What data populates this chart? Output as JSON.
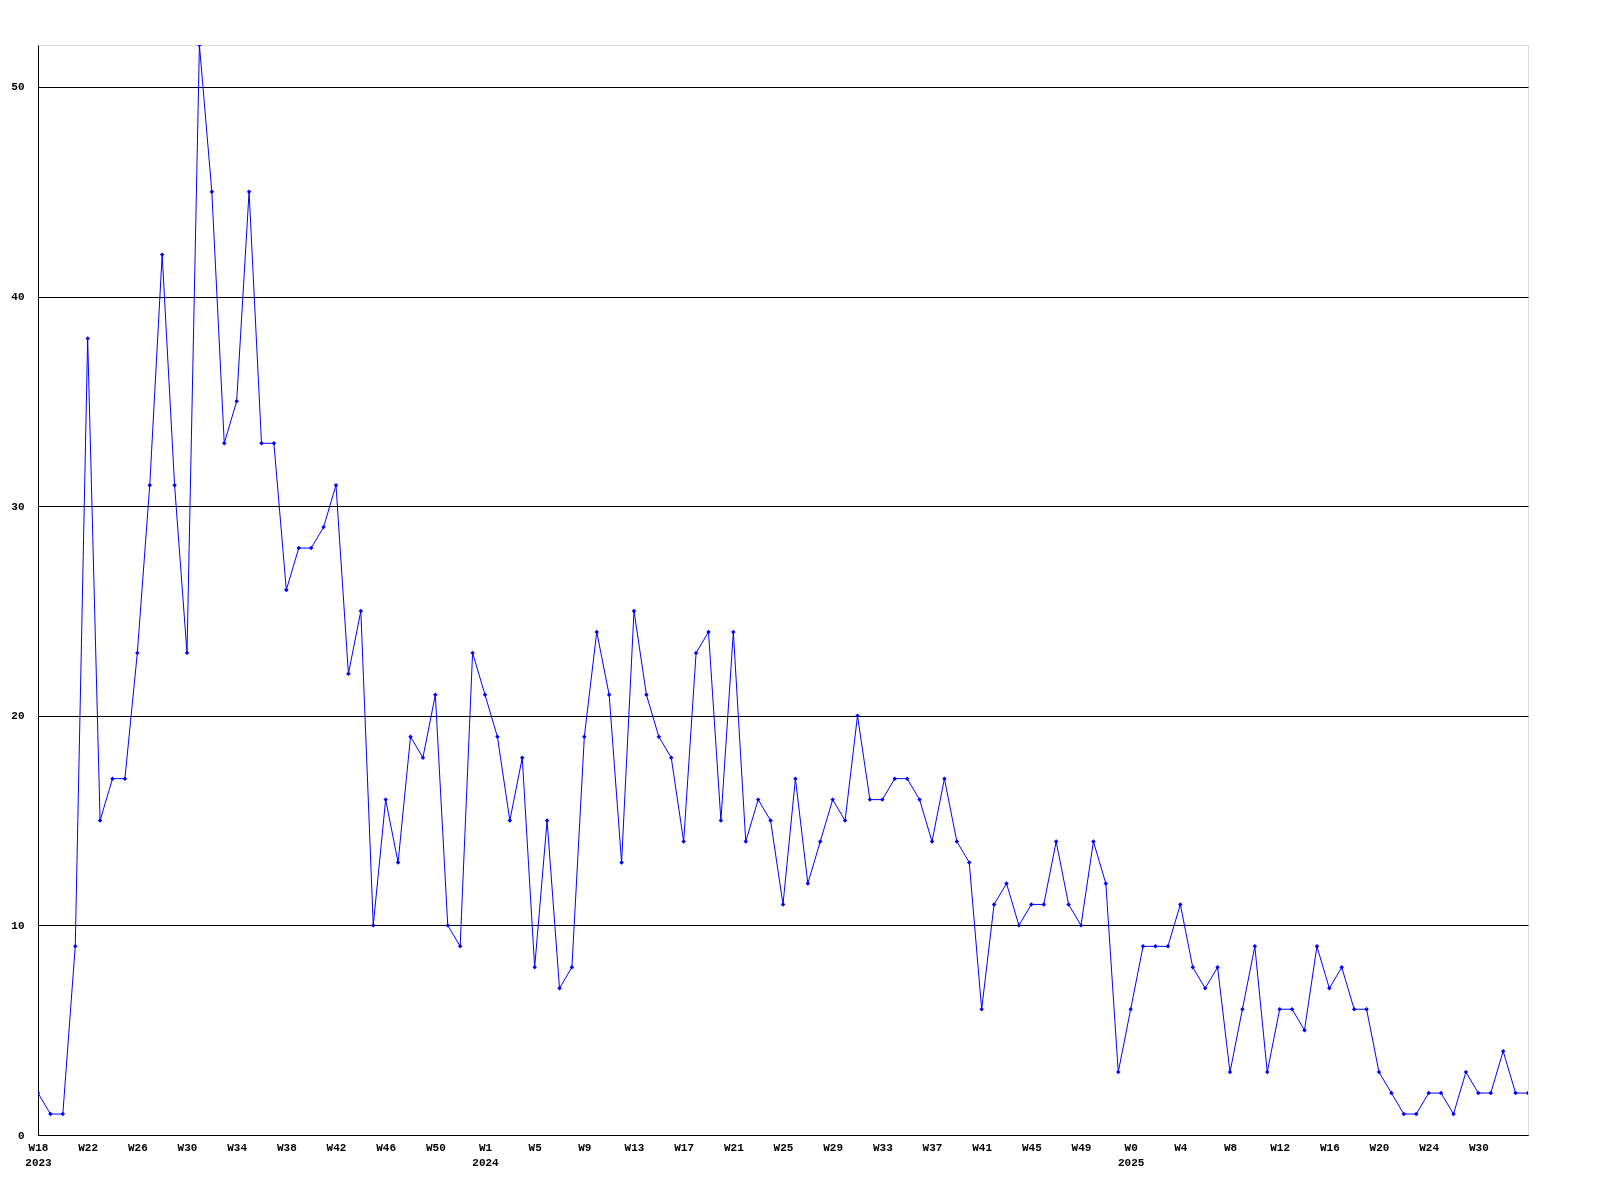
{
  "chart_data": {
    "type": "line",
    "categories": [
      "W18\n2023",
      null,
      null,
      null,
      "W22",
      null,
      null,
      null,
      "W26",
      null,
      null,
      null,
      "W30",
      null,
      null,
      null,
      "W34",
      null,
      null,
      null,
      "W38",
      null,
      null,
      null,
      "W42",
      null,
      null,
      null,
      "W46",
      null,
      null,
      null,
      "W50",
      null,
      null,
      null,
      "W1\n2024",
      null,
      null,
      null,
      "W5",
      null,
      null,
      null,
      "W9",
      null,
      null,
      null,
      "W13",
      null,
      null,
      null,
      "W17",
      null,
      null,
      null,
      "W21",
      null,
      null,
      null,
      "W25",
      null,
      null,
      null,
      "W29",
      null,
      null,
      null,
      "W33",
      null,
      null,
      null,
      "W37",
      null,
      null,
      null,
      "W41",
      null,
      null,
      null,
      "W45",
      null,
      null,
      null,
      "W49",
      null,
      null,
      null,
      "W0\n2025",
      null,
      null,
      null,
      "W4",
      null,
      null,
      null,
      "W8",
      null,
      null,
      null,
      "W12",
      null,
      null,
      null,
      "W16",
      null,
      null,
      null,
      "W20",
      null,
      null,
      null,
      "W24",
      null,
      null,
      null,
      "W30",
      null,
      null,
      null,
      null
    ],
    "series": [
      {
        "color": "#0000ff",
        "values": [
          2,
          1,
          1,
          9,
          38,
          15,
          17,
          17,
          23,
          31,
          42,
          31,
          23,
          52,
          45,
          33,
          35,
          45,
          33,
          33,
          26,
          28,
          28,
          29,
          31,
          22,
          25,
          10,
          16,
          13,
          19,
          18,
          21,
          10,
          9,
          23,
          21,
          19,
          15,
          18,
          8,
          15,
          7,
          8,
          19,
          24,
          21,
          13,
          25,
          21,
          19,
          18,
          14,
          23,
          24,
          15,
          24,
          14,
          16,
          15,
          11,
          17,
          12,
          14,
          16,
          15,
          20,
          16,
          16,
          17,
          17,
          16,
          14,
          17,
          14,
          13,
          6,
          11,
          12,
          10,
          11,
          11,
          14,
          11,
          10,
          14,
          12,
          3,
          6,
          9,
          9,
          9,
          11,
          8,
          7,
          8,
          3,
          6,
          9,
          3,
          6,
          6,
          5,
          9,
          7,
          8,
          6,
          6,
          3,
          2,
          1,
          1,
          2,
          2,
          1,
          3,
          2,
          2,
          4,
          2,
          2
        ]
      }
    ],
    "ylim": [
      0,
      52
    ],
    "yticks": [
      0,
      10,
      20,
      30,
      40,
      50
    ],
    "grid": "y",
    "legend": false,
    "marker": "diamond",
    "line_style": "solid"
  }
}
